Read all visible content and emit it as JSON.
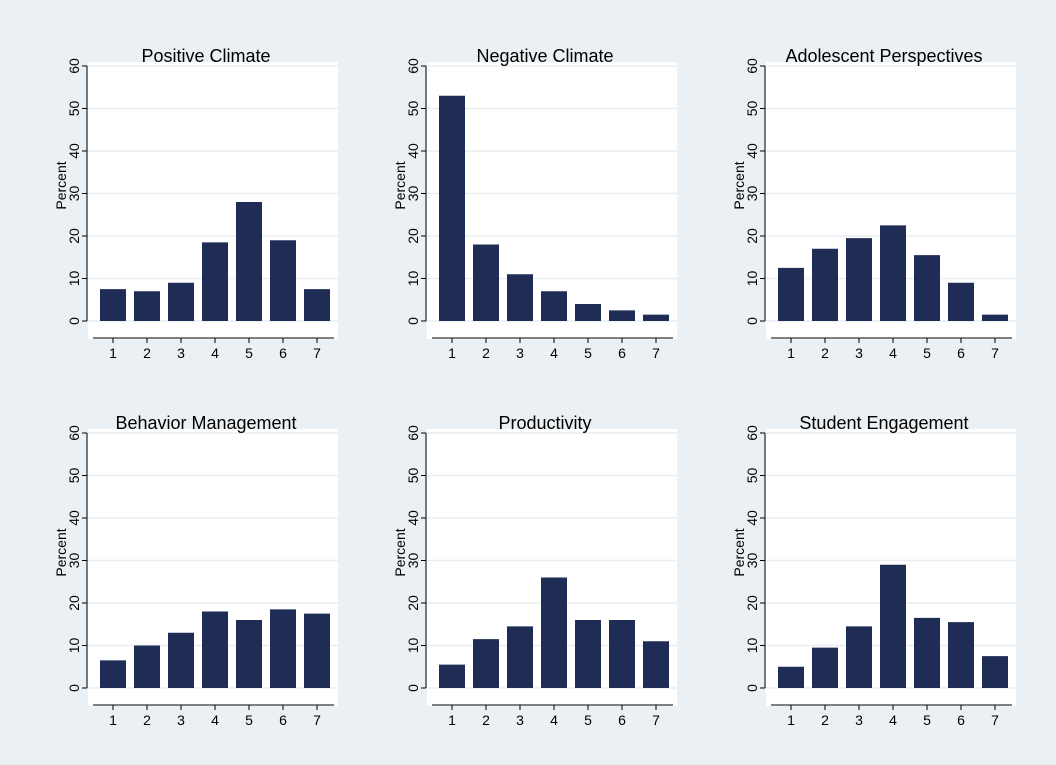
{
  "colors": {
    "background": "#eaf0f3",
    "plot_background": "#ffffff",
    "bar": "#1f2c56",
    "grid": "#e9eef1",
    "axis": "#000000"
  },
  "chart_data": [
    {
      "type": "bar",
      "title": "Positive Climate",
      "ylabel": "Percent",
      "xlabel": "",
      "categories": [
        "1",
        "2",
        "3",
        "4",
        "5",
        "6",
        "7"
      ],
      "values": [
        7.5,
        7,
        9,
        18.5,
        28,
        19,
        7.5
      ],
      "ylim": [
        0,
        60
      ],
      "yticks": [
        "0",
        "10",
        "20",
        "30",
        "40",
        "50",
        "60"
      ],
      "grid": true
    },
    {
      "type": "bar",
      "title": "Negative Climate",
      "ylabel": "Percent",
      "xlabel": "",
      "categories": [
        "1",
        "2",
        "3",
        "4",
        "5",
        "6",
        "7"
      ],
      "values": [
        53,
        18,
        11,
        7,
        4,
        2.5,
        1.5
      ],
      "ylim": [
        0,
        60
      ],
      "yticks": [
        "0",
        "10",
        "20",
        "30",
        "40",
        "50",
        "60"
      ],
      "grid": true
    },
    {
      "type": "bar",
      "title": "Adolescent Perspectives",
      "ylabel": "Percent",
      "xlabel": "",
      "categories": [
        "1",
        "2",
        "3",
        "4",
        "5",
        "6",
        "7"
      ],
      "values": [
        12.5,
        17,
        19.5,
        22.5,
        15.5,
        9,
        1.5
      ],
      "ylim": [
        0,
        60
      ],
      "yticks": [
        "0",
        "10",
        "20",
        "30",
        "40",
        "50",
        "60"
      ],
      "grid": true
    },
    {
      "type": "bar",
      "title": "Behavior Management",
      "ylabel": "Percent",
      "xlabel": "",
      "categories": [
        "1",
        "2",
        "3",
        "4",
        "5",
        "6",
        "7"
      ],
      "values": [
        6.5,
        10,
        13,
        18,
        16,
        18.5,
        17.5
      ],
      "ylim": [
        0,
        60
      ],
      "yticks": [
        "0",
        "10",
        "20",
        "30",
        "40",
        "50",
        "60"
      ],
      "grid": true
    },
    {
      "type": "bar",
      "title": "Productivity",
      "ylabel": "Percent",
      "xlabel": "",
      "categories": [
        "1",
        "2",
        "3",
        "4",
        "5",
        "6",
        "7"
      ],
      "values": [
        5.5,
        11.5,
        14.5,
        26,
        16,
        16,
        11
      ],
      "ylim": [
        0,
        60
      ],
      "yticks": [
        "0",
        "10",
        "20",
        "30",
        "40",
        "50",
        "60"
      ],
      "grid": true
    },
    {
      "type": "bar",
      "title": "Student Engagement",
      "ylabel": "Percent",
      "xlabel": "",
      "categories": [
        "1",
        "2",
        "3",
        "4",
        "5",
        "6",
        "7"
      ],
      "values": [
        5,
        9.5,
        14.5,
        29,
        16.5,
        15.5,
        7.5
      ],
      "ylim": [
        0,
        60
      ],
      "yticks": [
        "0",
        "10",
        "20",
        "30",
        "40",
        "50",
        "60"
      ],
      "grid": true
    }
  ]
}
